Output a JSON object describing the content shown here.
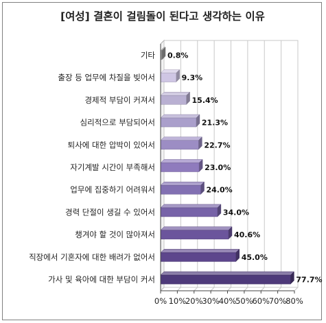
{
  "chart_data": {
    "type": "bar",
    "orientation": "horizontal",
    "title": "[여성] 결혼이 걸림돌이 된다고 생각하는 이유",
    "categories": [
      "기타",
      "출장 등 업무에 차질을 빚어서",
      "경제적 부담이 커져서",
      "심리적으로 부담되어서",
      "퇴사에 대한 압박이 있어서",
      "자기계발 시간이 부족해서",
      "업무에 집중하기 어려워서",
      "경력 단절이 생길 수 있어서",
      "챙겨야 할 것이 많아져서",
      "직장에서 기혼자에 대한 배려가 없어서",
      "가사 및 육아에 대한 부담이 커서"
    ],
    "values": [
      0.8,
      9.3,
      15.4,
      21.3,
      22.7,
      23.0,
      24.0,
      34.0,
      40.6,
      45.0,
      77.7
    ],
    "value_labels": [
      "0.8%",
      "9.3%",
      "15.4%",
      "21.3%",
      "22.7%",
      "23.0%",
      "24.0%",
      "34.0%",
      "40.6%",
      "45.0%",
      "77.7%"
    ],
    "bar_colors": [
      "#9a9a9a",
      "#cfc6e4",
      "#b9b0d2",
      "#aa9fcb",
      "#9c8dc4",
      "#8f7bbd",
      "#8270b2",
      "#7763a8",
      "#6b559c",
      "#5d468c",
      "#4e3a7a"
    ],
    "xlim": [
      0,
      80
    ],
    "xticks": [
      "0%",
      "10%",
      "20%",
      "30%",
      "40%",
      "50%",
      "60%",
      "70%",
      "80%"
    ],
    "grid": true,
    "legend": "none"
  }
}
